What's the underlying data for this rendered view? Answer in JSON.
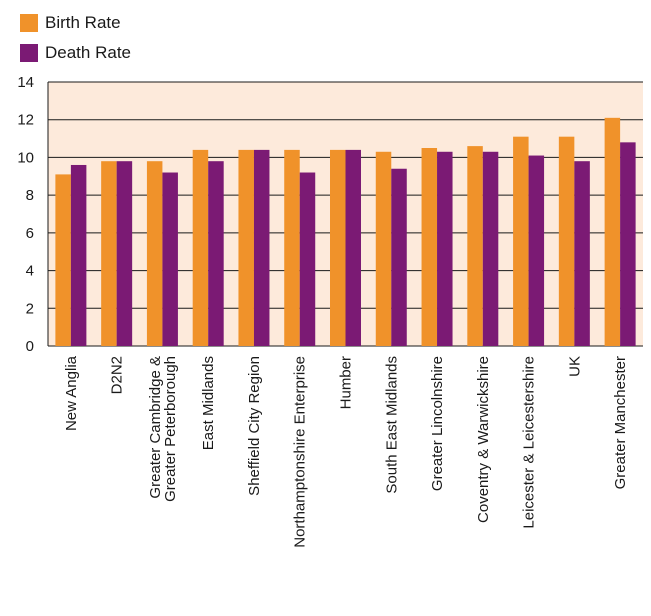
{
  "colors": {
    "birth": "#f0922a",
    "death": "#7b1a74",
    "plot_bg": "#fdeadb",
    "grid": "#1a1a1a"
  },
  "chart_data": {
    "type": "bar",
    "categories": [
      "New Anglia",
      "D2N2",
      "Greater Cambridge &\nGreater Peterborough",
      "East Midlands",
      "Sheffield City Region",
      "Northamptonshire Enterprise",
      "Humber",
      "South East Midlands",
      "Greater Lincolnshire",
      "Coventry & Warwickshire",
      "Leicester & Leicestershire",
      "UK",
      "Greater Manchester"
    ],
    "series": [
      {
        "name": "Birth Rate",
        "values": [
          9.1,
          9.8,
          9.8,
          10.4,
          10.4,
          10.4,
          10.4,
          10.3,
          10.5,
          10.6,
          11.1,
          11.1,
          12.1
        ]
      },
      {
        "name": "Death Rate",
        "values": [
          9.6,
          9.8,
          9.2,
          9.8,
          10.4,
          9.2,
          10.4,
          9.4,
          10.3,
          10.3,
          10.1,
          9.8,
          10.8
        ]
      }
    ],
    "ylim": [
      0,
      14
    ],
    "yticks": [
      "0",
      "2",
      "4",
      "6",
      "8",
      "10",
      "12",
      "14"
    ],
    "grid": true,
    "legend_position": "top-left"
  }
}
